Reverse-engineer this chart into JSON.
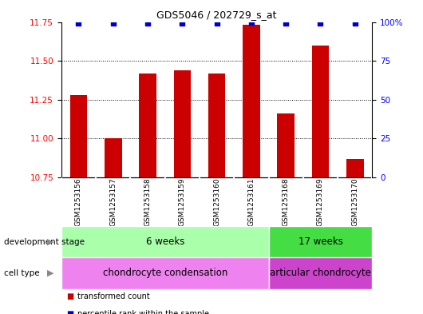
{
  "title": "GDS5046 / 202729_s_at",
  "samples": [
    "GSM1253156",
    "GSM1253157",
    "GSM1253158",
    "GSM1253159",
    "GSM1253160",
    "GSM1253161",
    "GSM1253168",
    "GSM1253169",
    "GSM1253170"
  ],
  "transformed_counts": [
    11.28,
    11.0,
    11.42,
    11.44,
    11.42,
    11.73,
    11.16,
    11.6,
    10.87
  ],
  "percentile_ranks": [
    99,
    99,
    99,
    99,
    99,
    100,
    99,
    99,
    99
  ],
  "ylim_left": [
    10.75,
    11.75
  ],
  "ylim_right": [
    0,
    100
  ],
  "yticks_left": [
    10.75,
    11.0,
    11.25,
    11.5,
    11.75
  ],
  "yticks_right": [
    0,
    25,
    50,
    75,
    100
  ],
  "bar_color": "#CC0000",
  "dot_color": "#0000CC",
  "bar_width": 0.5,
  "gridline_values": [
    11.0,
    11.25,
    11.5
  ],
  "dev_groups": [
    {
      "label": "6 weeks",
      "start": 0,
      "end": 5,
      "color": "#AAFFAA"
    },
    {
      "label": "17 weeks",
      "start": 6,
      "end": 8,
      "color": "#44DD44"
    }
  ],
  "cell_groups": [
    {
      "label": "chondrocyte condensation",
      "start": 0,
      "end": 5,
      "color": "#EE82EE"
    },
    {
      "label": "articular chondrocyte",
      "start": 6,
      "end": 8,
      "color": "#CC44CC"
    }
  ],
  "legend_bar_label": "transformed count",
  "legend_dot_label": "percentile rank within the sample",
  "dev_stage_label": "development stage",
  "cell_type_label": "cell type",
  "sample_bg": "#C8C8C8",
  "sample_divider": "#FFFFFF"
}
